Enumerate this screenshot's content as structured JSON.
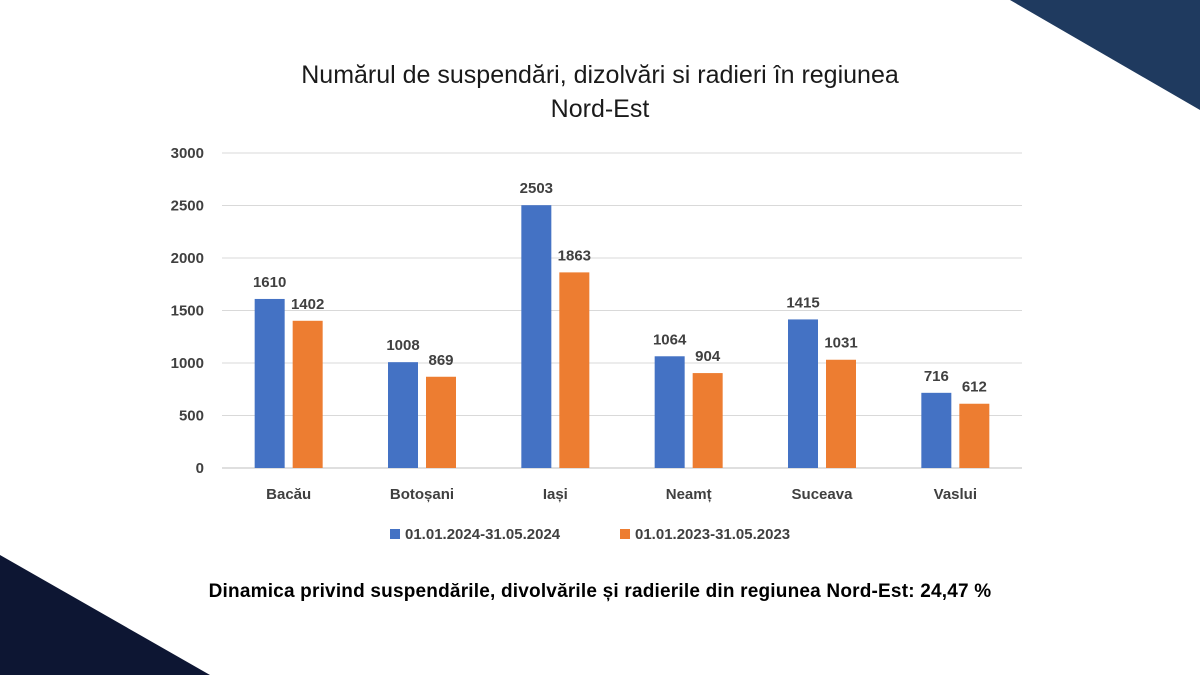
{
  "chart_data": {
    "type": "bar",
    "title_line1": "Numărul de suspendări, dizolvări si radieri în regiunea",
    "title_line2": "Nord-Est",
    "categories": [
      "Bacău",
      "Botoșani",
      "Iași",
      "Neamț",
      "Suceava",
      "Vaslui"
    ],
    "series": [
      {
        "name": "01.01.2024-31.05.2024",
        "color": "#4472C4",
        "values": [
          1610,
          1008,
          2503,
          1064,
          1415,
          716
        ]
      },
      {
        "name": "01.01.2023-31.05.2023",
        "color": "#ED7D31",
        "values": [
          1402,
          869,
          1863,
          904,
          1031,
          612
        ]
      }
    ],
    "y_ticks": [
      0,
      500,
      1000,
      1500,
      2000,
      2500,
      3000
    ],
    "ylim": [
      0,
      3000
    ],
    "xlabel": "",
    "ylabel": "",
    "grid": true,
    "legend_position": "bottom"
  },
  "footer": "Dinamica privind suspendările, divolvările și radierile din regiunea Nord-Est: 24,47 %",
  "colors": {
    "corner_top_right": "#1F3A5F",
    "corner_bottom_left": "#0D1633"
  }
}
